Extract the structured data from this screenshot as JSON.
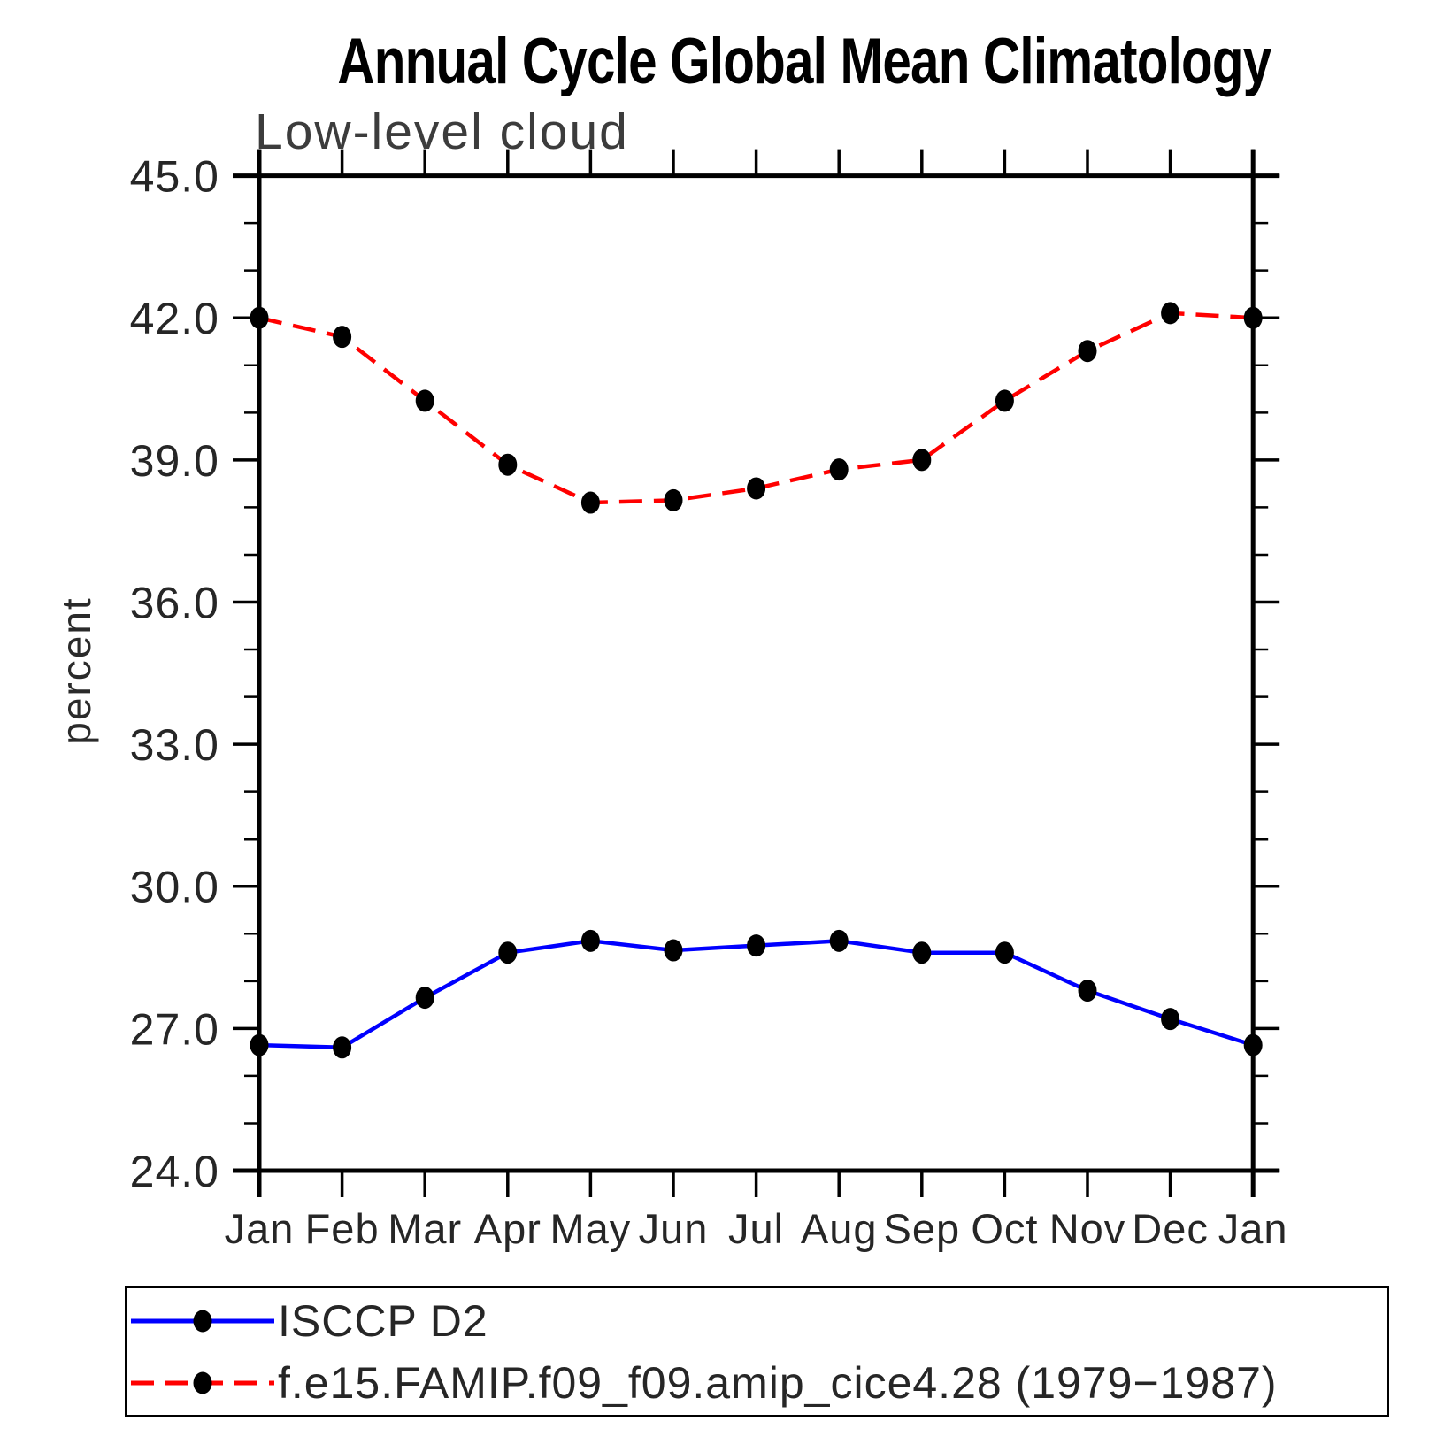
{
  "page": {
    "background": "#ffffff"
  },
  "chart_data": {
    "type": "line",
    "title": "Annual Cycle Global Mean Climatology",
    "subtitle": "Low-level cloud",
    "ylabel": "percent",
    "categories": [
      "Jan",
      "Feb",
      "Mar",
      "Apr",
      "May",
      "Jun",
      "Jul",
      "Aug",
      "Sep",
      "Oct",
      "Nov",
      "Dec",
      "Jan"
    ],
    "ylim": [
      24.0,
      45.0
    ],
    "y_major_step": 3.0,
    "y_minor_step": 1.0,
    "y_major_tick_labels": [
      "24.0",
      "27.0",
      "30.0",
      "33.0",
      "36.0",
      "39.0",
      "42.0",
      "45.0"
    ],
    "grid": false,
    "legend_position": "bottom-left-box",
    "axis_color": "#000000",
    "text_color": "#262626",
    "series": [
      {
        "name": "ISCCP D2",
        "color": "#0000ff",
        "line_style": "solid",
        "marker": "filled-circle",
        "marker_color": "#000000",
        "values": [
          26.65,
          26.6,
          27.65,
          28.6,
          28.85,
          28.65,
          28.75,
          28.85,
          28.6,
          28.6,
          27.8,
          27.2,
          26.65
        ]
      },
      {
        "name": "f.e15.FAMIP.f09_f09.amip_cice4.28 (1979−1987)",
        "color": "#ff0000",
        "line_style": "dashed",
        "marker": "filled-circle",
        "marker_color": "#000000",
        "values": [
          42.0,
          41.6,
          40.25,
          38.9,
          38.1,
          38.15,
          38.4,
          38.8,
          39.0,
          40.25,
          41.3,
          42.1,
          42.0
        ]
      }
    ]
  }
}
